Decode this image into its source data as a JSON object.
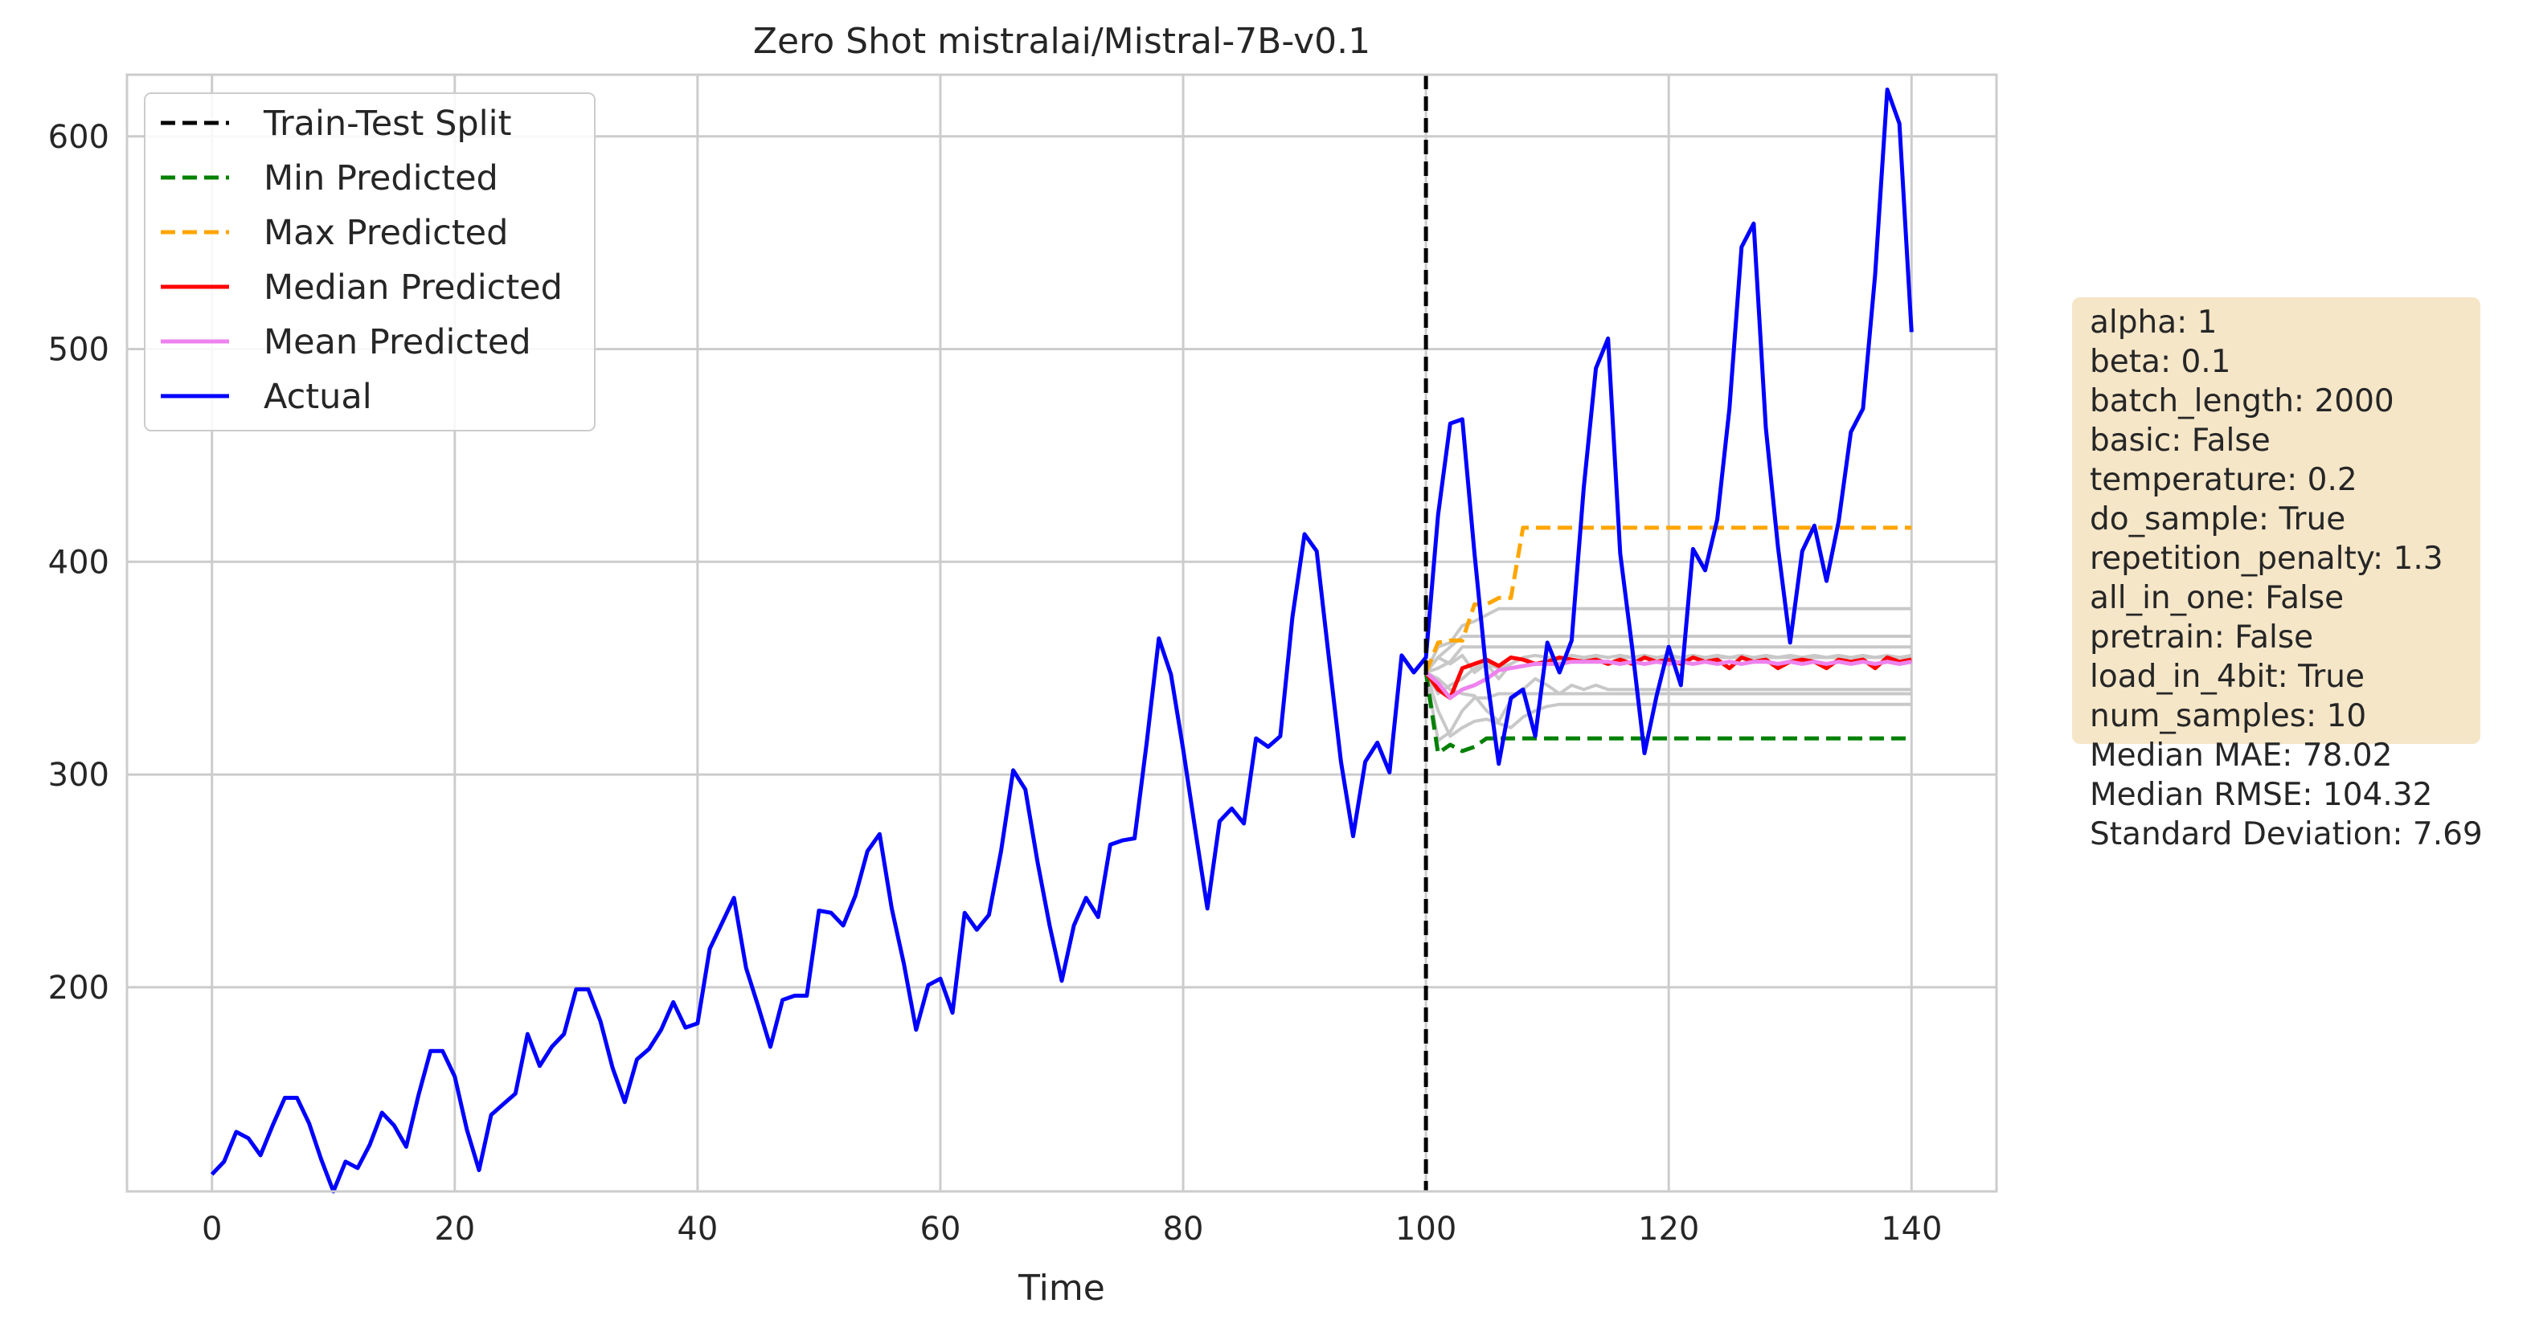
{
  "chart_data": {
    "type": "line",
    "title": "Zero Shot mistralai/Mistral-7B-v0.1",
    "xlabel": "Time",
    "ylabel": "",
    "xlim": [
      -7,
      147
    ],
    "ylim": [
      104,
      629
    ],
    "xticks": [
      0,
      20,
      40,
      60,
      80,
      100,
      120,
      140
    ],
    "yticks": [
      200,
      300,
      400,
      500,
      600
    ],
    "grid": true,
    "legend_position": "top-left",
    "split": {
      "name": "Train-Test Split",
      "x": 100,
      "color": "#000000",
      "style": "dashed"
    },
    "series": [
      {
        "name": "Actual",
        "color": "#0000ff",
        "style": "solid",
        "x_start": 0,
        "values": [
          112,
          118,
          132,
          129,
          121,
          135,
          148,
          148,
          136,
          119,
          104,
          118,
          115,
          126,
          141,
          135,
          125,
          149,
          170,
          170,
          158,
          133,
          114,
          140,
          145,
          150,
          178,
          163,
          172,
          178,
          199,
          199,
          184,
          162,
          146,
          166,
          171,
          180,
          193,
          181,
          183,
          218,
          230,
          242,
          209,
          191,
          172,
          194,
          196,
          196,
          236,
          235,
          229,
          243,
          264,
          272,
          237,
          211,
          180,
          201,
          204,
          188,
          235,
          227,
          234,
          264,
          302,
          293,
          259,
          229,
          203,
          229,
          242,
          233,
          267,
          269,
          270,
          315,
          364,
          347,
          312,
          274,
          237,
          278,
          284,
          277,
          317,
          313,
          318,
          374,
          413,
          405,
          355,
          306,
          271,
          306,
          315,
          301,
          356,
          348,
          355,
          422,
          465,
          467,
          404,
          347,
          305,
          336,
          340,
          318,
          362,
          348,
          363,
          435,
          491,
          505,
          404,
          359,
          310,
          337,
          360,
          342,
          406,
          396,
          420,
          472,
          548,
          559,
          463,
          407,
          362,
          405,
          417,
          391,
          419,
          461,
          472,
          535,
          622,
          606,
          508
        ]
      },
      {
        "name": "Min Predicted",
        "color": "#008000",
        "style": "dashed",
        "x_start": 100,
        "values": [
          348,
          310,
          314,
          311,
          313,
          317,
          317,
          317,
          317,
          317,
          317,
          317,
          317,
          317,
          317,
          317,
          317,
          317,
          317,
          317,
          317,
          317,
          317,
          317,
          317,
          317,
          317,
          317,
          317,
          317,
          317,
          317,
          317,
          317,
          317,
          317,
          317,
          317,
          317,
          317,
          317
        ]
      },
      {
        "name": "Max Predicted",
        "color": "#ffa500",
        "style": "dashed",
        "x_start": 100,
        "values": [
          348,
          362,
          363,
          363,
          380,
          380,
          383,
          383,
          416,
          416,
          416,
          416,
          416,
          416,
          416,
          416,
          416,
          416,
          416,
          416,
          416,
          416,
          416,
          416,
          416,
          416,
          416,
          416,
          416,
          416,
          416,
          416,
          416,
          416,
          416,
          416,
          416,
          416,
          416,
          416,
          416
        ]
      },
      {
        "name": "Median Predicted",
        "color": "#ff0000",
        "style": "solid",
        "x_start": 100,
        "values": [
          348,
          340,
          336,
          350,
          352,
          354,
          351,
          355,
          354,
          352,
          353,
          355,
          354,
          353,
          354,
          352,
          354,
          352,
          355,
          353,
          354,
          352,
          355,
          353,
          354,
          350,
          355,
          353,
          354,
          350,
          353,
          354,
          353,
          350,
          354,
          353,
          354,
          350,
          355,
          353,
          354
        ]
      },
      {
        "name": "Mean Predicted",
        "color": "#ee82ee",
        "style": "solid",
        "x_start": 100,
        "values": [
          348,
          343,
          336,
          340,
          342,
          345,
          349,
          350,
          351,
          352,
          352,
          352,
          353,
          353,
          353,
          353,
          352,
          353,
          352,
          353,
          352,
          353,
          352,
          353,
          352,
          353,
          352,
          353,
          353,
          352,
          353,
          352,
          353,
          352,
          353,
          352,
          353,
          352,
          353,
          352,
          353
        ]
      }
    ],
    "sample_paths": [
      [
        348,
        316,
        320,
        330,
        336,
        336,
        338,
        338,
        338,
        338,
        338,
        338,
        338,
        338,
        338,
        338,
        338,
        338,
        338,
        338,
        338,
        338,
        338,
        338,
        338,
        338,
        338,
        338,
        338,
        338,
        338,
        338,
        338,
        338,
        338,
        338,
        338,
        338,
        338,
        338,
        338
      ],
      [
        348,
        330,
        318,
        322,
        325,
        326,
        324,
        322,
        327,
        330,
        332,
        333,
        333,
        333,
        333,
        333,
        333,
        333,
        333,
        333,
        333,
        333,
        333,
        333,
        333,
        333,
        333,
        333,
        333,
        333,
        333,
        333,
        333,
        333,
        333,
        333,
        333,
        333,
        333,
        333,
        333
      ],
      [
        348,
        345,
        340,
        338,
        337,
        330,
        325,
        335,
        340,
        345,
        342,
        338,
        342,
        340,
        342,
        340,
        340,
        340,
        340,
        340,
        340,
        340,
        340,
        340,
        340,
        340,
        340,
        340,
        340,
        340,
        340,
        340,
        340,
        340,
        340,
        340,
        340,
        340,
        340,
        340,
        340
      ],
      [
        348,
        355,
        352,
        356,
        348,
        352,
        345,
        352,
        355,
        352,
        354,
        355,
        353,
        354,
        355,
        352,
        355,
        355,
        355,
        355,
        355,
        355,
        355,
        355,
        355,
        355,
        355,
        355,
        355,
        355,
        355,
        355,
        355,
        355,
        355,
        355,
        355,
        355,
        355,
        355,
        355
      ],
      [
        348,
        350,
        353,
        360,
        360,
        360,
        360,
        360,
        360,
        360,
        360,
        360,
        360,
        360,
        360,
        360,
        360,
        360,
        360,
        360,
        360,
        360,
        360,
        360,
        360,
        360,
        360,
        360,
        360,
        360,
        360,
        360,
        360,
        360,
        360,
        360,
        360,
        360,
        360,
        360,
        360
      ],
      [
        348,
        355,
        360,
        365,
        365,
        365,
        365,
        365,
        365,
        365,
        365,
        365,
        365,
        365,
        365,
        365,
        365,
        365,
        365,
        365,
        365,
        365,
        365,
        365,
        365,
        365,
        365,
        365,
        365,
        365,
        365,
        365,
        365,
        365,
        365,
        365,
        365,
        365,
        365,
        365,
        365
      ],
      [
        348,
        360,
        362,
        370,
        372,
        375,
        378,
        378,
        378,
        378,
        378,
        378,
        378,
        378,
        378,
        378,
        378,
        378,
        378,
        378,
        378,
        378,
        378,
        378,
        378,
        378,
        378,
        378,
        378,
        378,
        378,
        378,
        378,
        378,
        378,
        378,
        378,
        378,
        378,
        378,
        378
      ],
      [
        348,
        338,
        342,
        345,
        350,
        352,
        350,
        352,
        355,
        356,
        355,
        354,
        356,
        355,
        356,
        355,
        356,
        355,
        356,
        355,
        356,
        355,
        356,
        355,
        356,
        355,
        356,
        355,
        356,
        355,
        356,
        355,
        356,
        355,
        356,
        355,
        356,
        355,
        356,
        355,
        356
      ]
    ]
  },
  "info_box": {
    "params": [
      "alpha: 1",
      "beta: 0.1",
      "batch_length: 2000",
      "basic: False",
      "temperature: 0.2",
      "do_sample: True",
      "repetition_penalty: 1.3",
      "all_in_one: False",
      "pretrain: False",
      "load_in_4bit: True",
      "num_samples: 10"
    ],
    "metrics": [
      "Median MAE: 78.02",
      "Median RMSE: 104.32",
      "Standard Deviation: 7.69"
    ],
    "background": "#f5e6c8"
  },
  "colors": {
    "grid": "#cccccc",
    "spine": "#cccccc",
    "sample": "#c8c8c8"
  }
}
